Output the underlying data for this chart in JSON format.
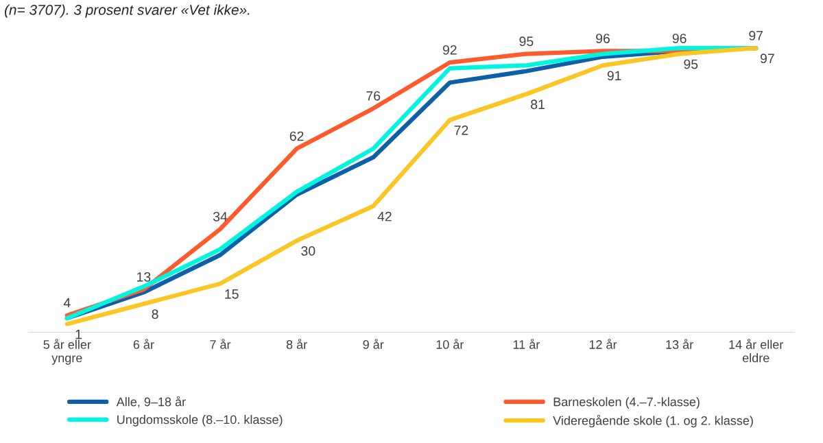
{
  "chart_data": {
    "type": "line",
    "subtitle": "(n= 3707). 3 prosent svarer «Vet ikke».",
    "categories": [
      "5 år eller\nyngre",
      "6 år",
      "7 år",
      "8 år",
      "9 år",
      "10 år",
      "11 år",
      "12 år",
      "13 år",
      "14 år eller\neldre"
    ],
    "legend": "bottom",
    "grid": false,
    "marker": "none",
    "line_style": "solid",
    "tick_labels": "x",
    "series": [
      {
        "name": "Alle, 9–18 år",
        "color": "#0f5ea8",
        "values": [
          3,
          12,
          25,
          46,
          59,
          85,
          89,
          94,
          96,
          97
        ]
      },
      {
        "name": "Barneskolen (4.–7.-klasse)",
        "color": "#ff5a2c",
        "values": [
          4,
          13,
          34,
          62,
          76,
          92,
          95,
          96,
          96,
          97
        ],
        "value_labels": [
          "4",
          "13",
          "34",
          "62",
          "76",
          "92",
          "95",
          "96",
          "96",
          "97"
        ]
      },
      {
        "name": "Ungdomsskole (8.–10. klasse)",
        "color": "#00f5e0",
        "values": [
          3,
          14,
          27,
          47,
          62,
          90,
          91,
          95,
          97,
          97
        ]
      },
      {
        "name": "Videregående skole (1. og 2. klasse)",
        "color": "#f9c623",
        "values": [
          1,
          8,
          15,
          30,
          42,
          72,
          81,
          91,
          95,
          97
        ],
        "value_labels": [
          "1",
          "8",
          "15",
          "30",
          "42",
          "72",
          "81",
          "91",
          "95",
          "97"
        ]
      }
    ]
  }
}
